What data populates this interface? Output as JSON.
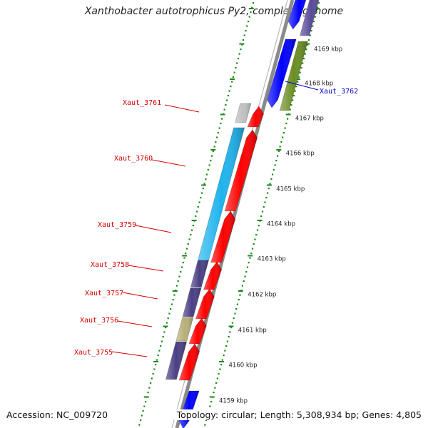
{
  "title": "Xanthobacter autotrophicus Py2, complete genome",
  "accession": "Accession: NC_009720",
  "topology": "Topology: circular; Length: 5,308,934 bp; Genes: 4,805",
  "ruler": {
    "labels": [
      "4159 kbp",
      "4160 kbp",
      "4161 kbp",
      "4162 kbp",
      "4163 kbp",
      "4164 kbp",
      "4165 kbp",
      "4166 kbp",
      "4167 kbp",
      "4168 kbp",
      "4169 kbp"
    ]
  },
  "genes": [
    {
      "name": "Xaut_3761",
      "label_color": "#d40000"
    },
    {
      "name": "Xaut_3760",
      "label_color": "#d40000"
    },
    {
      "name": "Xaut_3759",
      "label_color": "#d40000"
    },
    {
      "name": "Xaut_3758",
      "label_color": "#d40000"
    },
    {
      "name": "Xaut_3757",
      "label_color": "#d40000"
    },
    {
      "name": "Xaut_3756",
      "label_color": "#d40000"
    },
    {
      "name": "Xaut_3755",
      "label_color": "#d40000"
    },
    {
      "name": "Xaut_3762",
      "label_color": "#0000cc"
    }
  ],
  "colors": {
    "backbone": "#8a8a8a",
    "ticks": "#1a8a1a",
    "forward_cds": "#ff0000",
    "reverse_cds": "#0000ff",
    "gene_light_gray": "#c0c0c0",
    "gene_cyan": "#1eb4ee",
    "gene_slate": "#4a3f84",
    "gene_khaki": "#b8b078",
    "gene_olive": "#6b8e23",
    "gene_lavender": "#5a4a9a"
  }
}
